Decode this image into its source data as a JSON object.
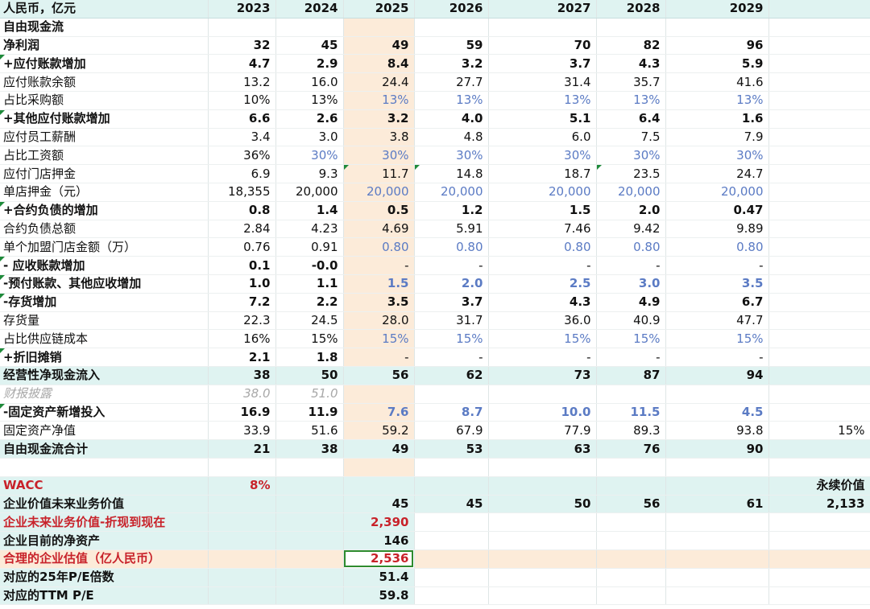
{
  "header": {
    "label": "人民币，亿元",
    "years": [
      "2023",
      "2024",
      "2025",
      "2026",
      "2027",
      "2028",
      "2029"
    ],
    "extra": ""
  },
  "rows": [
    {
      "id": "fcf-title",
      "label": "自由现金流",
      "cells": [
        "",
        "",
        "",
        "",
        "",
        "",
        ""
      ],
      "extra": "",
      "style": "bold",
      "indent": 0
    },
    {
      "id": "net-profit",
      "label": "净利润",
      "cells": [
        "32",
        "45",
        "49",
        "59",
        "70",
        "82",
        "96"
      ],
      "extra": "",
      "style": "bold",
      "indent": 0
    },
    {
      "id": "ap-increase",
      "label": "+应付账款增加",
      "cells": [
        "4.7",
        "2.9",
        "8.4",
        "3.2",
        "3.7",
        "4.3",
        "5.9"
      ],
      "extra": "",
      "style": "bold",
      "indent": 0,
      "mark": true
    },
    {
      "id": "ap-balance",
      "label": "应付账款余额",
      "cells": [
        "13.2",
        "16.0",
        "24.4",
        "27.7",
        "31.4",
        "35.7",
        "41.6"
      ],
      "extra": "",
      "style": "normal",
      "indent": 1
    },
    {
      "id": "ap-pct",
      "label": "占比采购额",
      "cells": [
        "10%",
        "13%",
        "13%",
        "13%",
        "13%",
        "13%",
        "13%"
      ],
      "extra": "",
      "style": "normal",
      "indent": 1,
      "blueFrom": 2
    },
    {
      "id": "other-ap-increase",
      "label": "+其他应付账款增加",
      "cells": [
        "6.6",
        "2.6",
        "3.2",
        "4.0",
        "5.1",
        "6.4",
        "1.6"
      ],
      "extra": "",
      "style": "bold",
      "indent": 0,
      "mark": true
    },
    {
      "id": "salary-payable",
      "label": "应付员工薪酬",
      "cells": [
        "3.4",
        "3.0",
        "3.8",
        "4.8",
        "6.0",
        "7.5",
        "7.9"
      ],
      "extra": "",
      "style": "normal",
      "indent": 1
    },
    {
      "id": "salary-pct",
      "label": "占比工资额",
      "cells": [
        "36%",
        "30%",
        "30%",
        "30%",
        "30%",
        "30%",
        "30%"
      ],
      "extra": "",
      "style": "normal",
      "indent": 2,
      "blueFrom": 1
    },
    {
      "id": "store-deposit",
      "label": "应付门店押金",
      "cells": [
        "6.9",
        "9.3",
        "11.7",
        "14.8",
        "18.7",
        "23.5",
        "24.7"
      ],
      "extra": "",
      "style": "normal",
      "indent": 1,
      "markCols": [
        2,
        3,
        5
      ]
    },
    {
      "id": "deposit-per-store",
      "label": "单店押金（元）",
      "cells": [
        "18,355",
        "20,000",
        "20,000",
        "20,000",
        "20,000",
        "20,000",
        "20,000"
      ],
      "extra": "",
      "style": "normal",
      "indent": 2,
      "blueFrom": 2
    },
    {
      "id": "contract-liab-increase",
      "label": "+合约负债的增加",
      "cells": [
        "0.8",
        "1.4",
        "0.5",
        "1.2",
        "1.5",
        "2.0",
        "0.47"
      ],
      "extra": "",
      "style": "bold",
      "indent": 0,
      "mark": true
    },
    {
      "id": "contract-liab-total",
      "label": "合约负债总额",
      "cells": [
        "2.84",
        "4.23",
        "4.69",
        "5.91",
        "7.46",
        "9.42",
        "9.89"
      ],
      "extra": "",
      "style": "normal",
      "indent": 1
    },
    {
      "id": "franchise-amount",
      "label": "单个加盟门店金额（万）",
      "cells": [
        "0.76",
        "0.91",
        "0.80",
        "0.80",
        "0.80",
        "0.80",
        "0.80"
      ],
      "extra": "",
      "style": "normal",
      "indent": 1,
      "blueFrom": 2
    },
    {
      "id": "ar-increase",
      "label": "- 应收账款增加",
      "cells": [
        "0.1",
        "-0.0",
        "-",
        "-",
        "-",
        "-",
        "-"
      ],
      "extra": "",
      "style": "bold",
      "indent": 0,
      "mark": true,
      "normalFrom": 2
    },
    {
      "id": "prepay-increase",
      "label": "-预付账款、其他应收增加",
      "cells": [
        "1.0",
        "1.1",
        "1.5",
        "2.0",
        "2.5",
        "3.0",
        "3.5"
      ],
      "extra": "",
      "style": "bold",
      "indent": 0,
      "mark": true,
      "blueFrom": 2
    },
    {
      "id": "inventory-increase",
      "label": "-存货增加",
      "cells": [
        "7.2",
        "2.2",
        "3.5",
        "3.7",
        "4.3",
        "4.9",
        "6.7"
      ],
      "extra": "",
      "style": "bold",
      "indent": 0,
      "mark": true
    },
    {
      "id": "inventory",
      "label": "存货量",
      "cells": [
        "22.3",
        "24.5",
        "28.0",
        "31.7",
        "36.0",
        "40.9",
        "47.7"
      ],
      "extra": "",
      "style": "normal",
      "indent": 1
    },
    {
      "id": "supply-pct",
      "label": "占比供应链成本",
      "cells": [
        "16%",
        "15%",
        "15%",
        "15%",
        "15%",
        "15%",
        "15%"
      ],
      "extra": "",
      "style": "normal",
      "indent": 1,
      "blueFrom": 2
    },
    {
      "id": "depreciation",
      "label": "+折旧摊销",
      "cells": [
        "2.1",
        "1.8",
        "-",
        "-",
        "-",
        "-",
        "-"
      ],
      "extra": "",
      "style": "bold",
      "indent": 0,
      "mark": true,
      "normalFrom": 2
    },
    {
      "id": "operating-cf",
      "label": "经营性净现金流入",
      "cells": [
        "38",
        "50",
        "56",
        "62",
        "73",
        "87",
        "94"
      ],
      "extra": "",
      "style": "bold",
      "indent": 0,
      "teal": true
    },
    {
      "id": "reported",
      "label": "财报披露",
      "cells": [
        "38.0",
        "51.0",
        "",
        "",
        "",
        "",
        ""
      ],
      "extra": "",
      "style": "gray",
      "indent": 1
    },
    {
      "id": "capex",
      "label": "-固定资产新增投入",
      "cells": [
        "16.9",
        "11.9",
        "7.6",
        "8.7",
        "10.0",
        "11.5",
        "4.5"
      ],
      "extra": "",
      "style": "bold",
      "indent": 0,
      "mark": true,
      "blueFrom": 2
    },
    {
      "id": "fixed-assets",
      "label": "固定资产净值",
      "cells": [
        "33.9",
        "51.6",
        "59.2",
        "67.9",
        "77.9",
        "89.3",
        "93.8"
      ],
      "extra": "15%",
      "style": "normal",
      "indent": 1
    },
    {
      "id": "fcf-total",
      "label": "自由现金流合计",
      "cells": [
        "21",
        "38",
        "49",
        "53",
        "63",
        "76",
        "90"
      ],
      "extra": "",
      "style": "bold",
      "indent": 0,
      "teal": true
    },
    {
      "id": "blank",
      "label": "",
      "cells": [
        "",
        "",
        "",
        "",
        "",
        "",
        ""
      ],
      "extra": "",
      "style": "normal",
      "indent": 0
    }
  ],
  "valuation": {
    "wacc": {
      "label": "WACC",
      "value": "8%"
    },
    "perpetuity_label": "永续价值",
    "future_value": {
      "label": "企业价值未来业务价值",
      "cells": [
        "45",
        "45",
        "50",
        "56",
        "61"
      ],
      "extra": "2,133"
    },
    "discounted": {
      "label": "企业未来业务价值-折现到现在",
      "value": "2,390"
    },
    "net_assets": {
      "label": "企业目前的净资产",
      "value": "146"
    },
    "fair_value": {
      "label": "合理的企业估值（亿人民币）",
      "value": "2,536"
    },
    "pe25": {
      "label": "对应的25年P/E倍数",
      "value": "51.4"
    },
    "pe_ttm": {
      "label": "对应的TTM P/E",
      "value": "59.8"
    }
  },
  "colors": {
    "teal": "#dff3f1",
    "highlight_2025": "#fcebd9",
    "red": "#c8222a",
    "blue": "#5b7bc4",
    "selection": "#2e8b2e"
  }
}
